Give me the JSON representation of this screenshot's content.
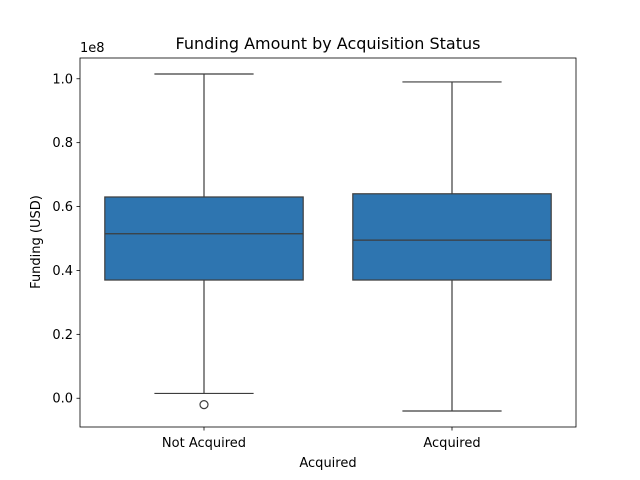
{
  "chart_data": {
    "type": "box",
    "title": "Funding Amount by Acquisition Status",
    "xlabel": "Acquired",
    "ylabel": "Funding (USD)",
    "y_offset_label": "1e8",
    "ylim": [
      -0.09,
      1.065
    ],
    "yticks": [
      0.0,
      0.2,
      0.4,
      0.6,
      0.8,
      1.0
    ],
    "ytick_labels": [
      "0.0",
      "0.2",
      "0.4",
      "0.6",
      "0.8",
      "1.0"
    ],
    "grid": false,
    "box_color": "#2e75b0",
    "line_color": "#3d3d3d",
    "categories": [
      "Not Acquired",
      "Acquired"
    ],
    "boxes": [
      {
        "category": "Not Acquired",
        "whisker_low": 0.015,
        "q1": 0.37,
        "median": 0.515,
        "q3": 0.63,
        "whisker_high": 1.015,
        "outliers": [
          -0.02
        ]
      },
      {
        "category": "Acquired",
        "whisker_low": -0.04,
        "q1": 0.37,
        "median": 0.495,
        "q3": 0.64,
        "whisker_high": 0.99,
        "outliers": []
      }
    ]
  }
}
